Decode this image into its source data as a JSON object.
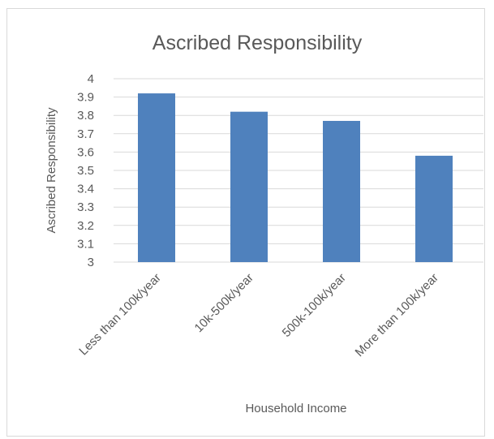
{
  "chart_data": {
    "type": "bar",
    "title": "Ascribed Responsibility",
    "xlabel": "Household Income",
    "ylabel": "Ascribed Responsibility",
    "categories": [
      "Less than 100k/year",
      "10k-500k/year",
      "500k-100k/year",
      "More than 100k/year"
    ],
    "values": [
      3.92,
      3.82,
      3.77,
      3.58
    ],
    "ylim": [
      3,
      4
    ],
    "yticks": [
      "3",
      "3.1",
      "3.2",
      "3.3",
      "3.4",
      "3.5",
      "3.6",
      "3.7",
      "3.8",
      "3.9",
      "4"
    ],
    "grid": true,
    "legend": "none",
    "bar_color": "#4f81bd",
    "grid_color": "#d9d9d9"
  }
}
